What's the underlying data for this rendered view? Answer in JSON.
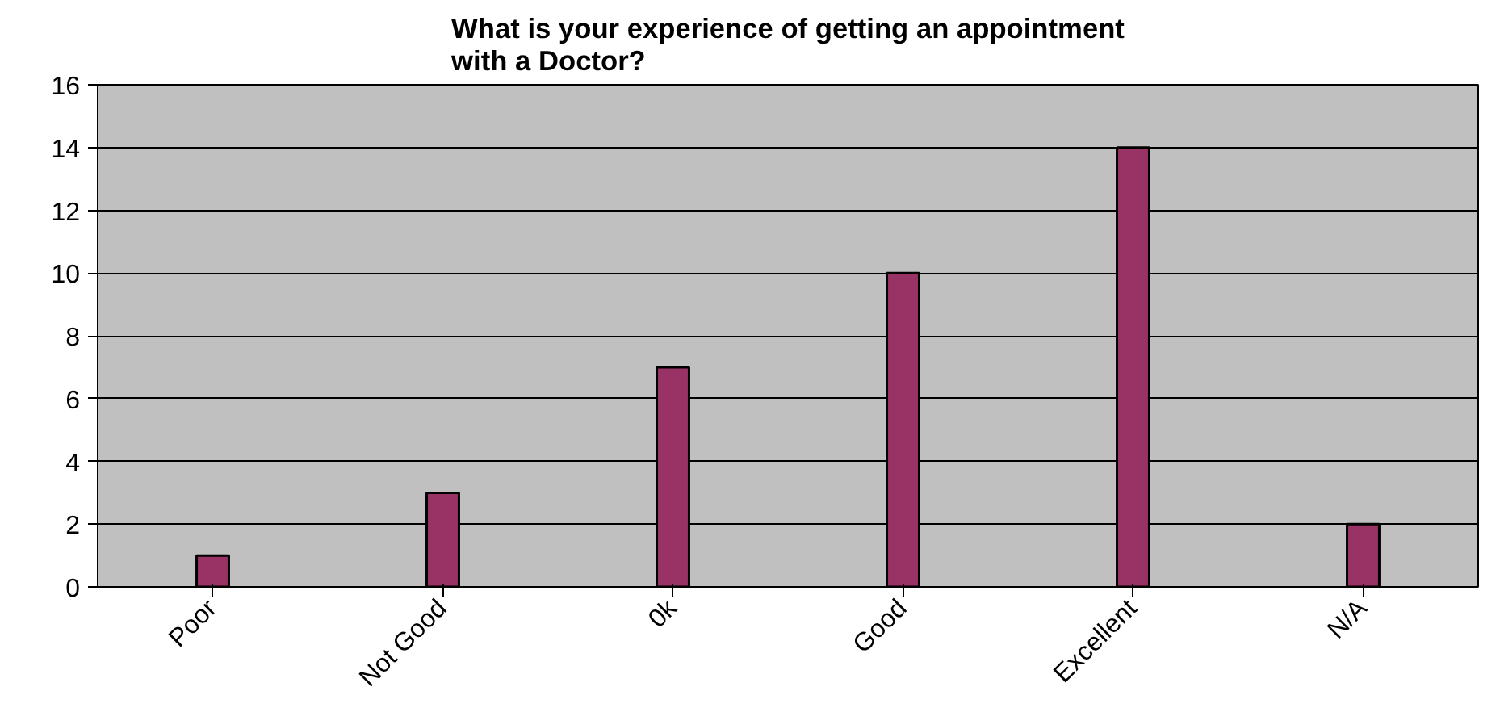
{
  "chart_data": {
    "type": "bar",
    "title": "What is your experience of getting an appointment\nwith a Doctor?",
    "categories": [
      "Poor",
      "Not Good",
      "0k",
      "Good",
      "Excellent",
      "N/A"
    ],
    "values": [
      1,
      3,
      7,
      10,
      14,
      2
    ],
    "color": "#993366",
    "ylim": [
      0,
      16
    ],
    "yticks": [
      0,
      2,
      4,
      6,
      8,
      10,
      12,
      14,
      16
    ],
    "grid": "y"
  }
}
